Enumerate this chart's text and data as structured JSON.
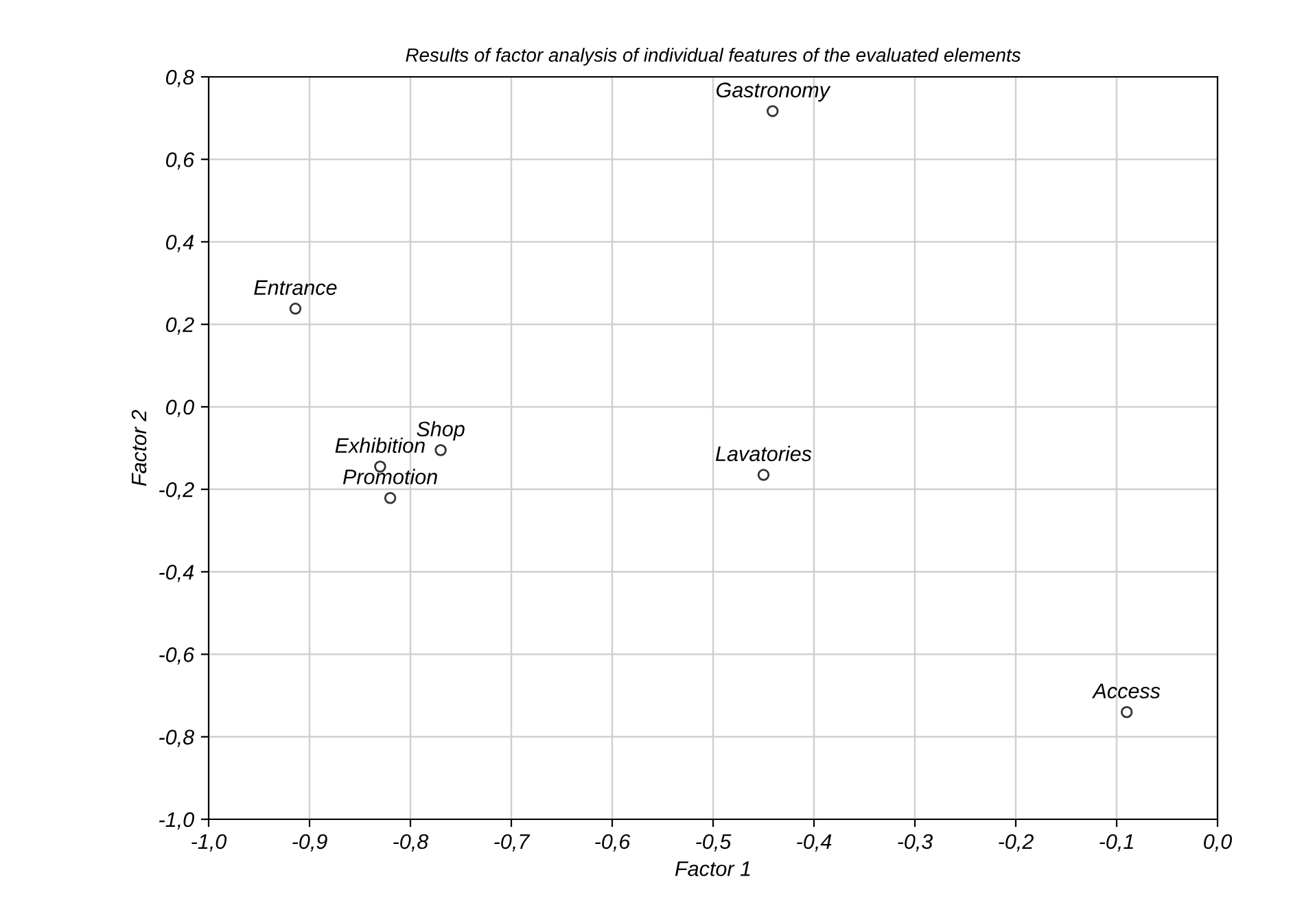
{
  "chart_data": {
    "type": "scatter",
    "title": "Results of factor analysis of individual features of the evaluated elements",
    "xlabel": "Factor 1",
    "ylabel": "Factor 2",
    "series": [
      {
        "color": "#333333",
        "x": [
          -0.441,
          -0.914,
          -0.83,
          -0.77,
          -0.82,
          -0.45,
          -0.09
        ],
        "values": [
          0.717,
          0.238,
          -0.145,
          -0.105,
          -0.221,
          -0.165,
          -0.74
        ]
      }
    ],
    "annotations": [
      {
        "text": "Gastronomy",
        "x": -0.441,
        "y": 0.717
      },
      {
        "text": "Entrance",
        "x": -0.914,
        "y": 0.238
      },
      {
        "text": "Exhibition",
        "x": -0.83,
        "y": -0.145
      },
      {
        "text": "Shop",
        "x": -0.77,
        "y": -0.105
      },
      {
        "text": "Promotion",
        "x": -0.82,
        "y": -0.221
      },
      {
        "text": "Lavatories",
        "x": -0.45,
        "y": -0.165
      },
      {
        "text": "Access",
        "x": -0.09,
        "y": -0.74
      }
    ],
    "xlim": [
      -1.0,
      0.0
    ],
    "ylim": [
      -1.0,
      0.8
    ],
    "xticks": [
      {
        "value": -1.0,
        "label": "-1,0"
      },
      {
        "value": -0.9,
        "label": "-0,9"
      },
      {
        "value": -0.8,
        "label": "-0,8"
      },
      {
        "value": -0.7,
        "label": "-0,7"
      },
      {
        "value": -0.6,
        "label": "-0,6"
      },
      {
        "value": -0.5,
        "label": "-0,5"
      },
      {
        "value": -0.4,
        "label": "-0,4"
      },
      {
        "value": -0.3,
        "label": "-0,3"
      },
      {
        "value": -0.2,
        "label": "-0,2"
      },
      {
        "value": -0.1,
        "label": "-0,1"
      },
      {
        "value": 0.0,
        "label": "0,0"
      }
    ],
    "yticks": [
      {
        "value": -1.0,
        "label": "-1,0"
      },
      {
        "value": -0.8,
        "label": "-0,8"
      },
      {
        "value": -0.6,
        "label": "-0,6"
      },
      {
        "value": -0.4,
        "label": "-0,4"
      },
      {
        "value": -0.2,
        "label": "-0,2"
      },
      {
        "value": 0.0,
        "label": "0,0"
      },
      {
        "value": 0.2,
        "label": "0,2"
      },
      {
        "value": 0.4,
        "label": "0,4"
      },
      {
        "value": 0.6,
        "label": "0,6"
      },
      {
        "value": 0.8,
        "label": "0,8"
      }
    ],
    "grid": true,
    "marker": "circle"
  }
}
